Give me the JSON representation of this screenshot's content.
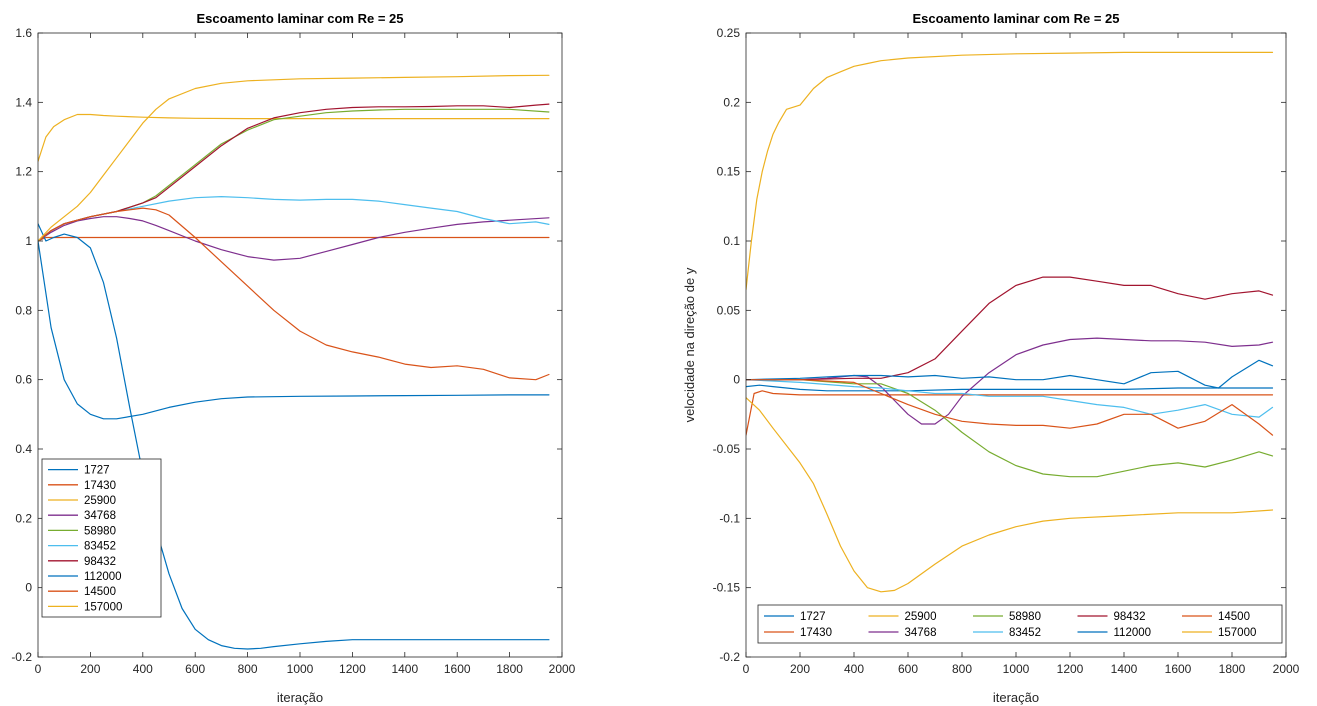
{
  "chart_data": [
    {
      "type": "line",
      "title": "Escoamento laminar com Re = 25",
      "xlabel": "iteração",
      "ylabel": "",
      "xlim": [
        0,
        2000
      ],
      "ylim": [
        -0.2,
        1.6
      ],
      "xticks": [
        0,
        200,
        400,
        600,
        800,
        1000,
        1200,
        1400,
        1600,
        1800,
        2000
      ],
      "yticks": [
        -0.2,
        0,
        0.2,
        0.4,
        0.6,
        0.8,
        1,
        1.2,
        1.4,
        1.6
      ],
      "grid": false,
      "legend_position": "bottom-left",
      "legend_columns": 1,
      "series": [
        {
          "name": "1727",
          "color": "#0072BD",
          "x": [
            0,
            50,
            100,
            150,
            200,
            250,
            300,
            400,
            500,
            600,
            700,
            800,
            1000,
            1200,
            1400,
            1600,
            1800,
            1950
          ],
          "y": [
            1.0,
            0.75,
            0.6,
            0.53,
            0.5,
            0.487,
            0.487,
            0.5,
            0.52,
            0.535,
            0.545,
            0.55,
            0.552,
            0.553,
            0.554,
            0.555,
            0.556,
            0.556
          ]
        },
        {
          "name": "17430",
          "color": "#D95319",
          "x": [
            0,
            30,
            1950
          ],
          "y": [
            1.0,
            1.01,
            1.01
          ]
        },
        {
          "name": "25900",
          "color": "#EDB120",
          "x": [
            0,
            30,
            60,
            100,
            150,
            200,
            250,
            300,
            400,
            500,
            600,
            800,
            1000,
            1200,
            1400,
            1600,
            1800,
            1950
          ],
          "y": [
            1.23,
            1.3,
            1.33,
            1.35,
            1.365,
            1.365,
            1.362,
            1.36,
            1.357,
            1.355,
            1.354,
            1.353,
            1.353,
            1.353,
            1.353,
            1.353,
            1.353,
            1.353
          ]
        },
        {
          "name": "34768",
          "color": "#7E2F8E",
          "x": [
            0,
            50,
            100,
            150,
            200,
            250,
            300,
            350,
            400,
            450,
            500,
            600,
            700,
            800,
            900,
            1000,
            1100,
            1200,
            1300,
            1400,
            1500,
            1600,
            1700,
            1800,
            1950
          ],
          "y": [
            1.0,
            1.025,
            1.045,
            1.058,
            1.065,
            1.07,
            1.07,
            1.065,
            1.058,
            1.045,
            1.03,
            1.0,
            0.975,
            0.955,
            0.945,
            0.95,
            0.97,
            0.99,
            1.01,
            1.025,
            1.037,
            1.048,
            1.055,
            1.06,
            1.067
          ]
        },
        {
          "name": "58980",
          "color": "#77AC30",
          "x": [
            0,
            50,
            100,
            200,
            300,
            400,
            450,
            500,
            600,
            700,
            800,
            900,
            1000,
            1100,
            1200,
            1300,
            1400,
            1500,
            1600,
            1700,
            1800,
            1950
          ],
          "y": [
            1.0,
            1.03,
            1.05,
            1.07,
            1.085,
            1.11,
            1.13,
            1.16,
            1.22,
            1.28,
            1.32,
            1.35,
            1.36,
            1.37,
            1.375,
            1.378,
            1.38,
            1.38,
            1.38,
            1.38,
            1.38,
            1.372
          ]
        },
        {
          "name": "83452",
          "color": "#4DBEEE",
          "x": [
            0,
            50,
            100,
            200,
            300,
            400,
            500,
            600,
            700,
            800,
            900,
            1000,
            1100,
            1200,
            1300,
            1400,
            1500,
            1600,
            1700,
            1800,
            1900,
            1950
          ],
          "y": [
            1.0,
            1.03,
            1.05,
            1.07,
            1.085,
            1.1,
            1.115,
            1.125,
            1.128,
            1.125,
            1.12,
            1.118,
            1.12,
            1.12,
            1.115,
            1.105,
            1.095,
            1.085,
            1.065,
            1.05,
            1.055,
            1.048
          ]
        },
        {
          "name": "98432",
          "color": "#A2142F",
          "x": [
            0,
            50,
            100,
            200,
            300,
            400,
            450,
            500,
            600,
            700,
            800,
            900,
            1000,
            1100,
            1200,
            1300,
            1400,
            1500,
            1600,
            1700,
            1800,
            1900,
            1950
          ],
          "y": [
            1.0,
            1.03,
            1.05,
            1.07,
            1.085,
            1.11,
            1.125,
            1.155,
            1.215,
            1.275,
            1.325,
            1.355,
            1.37,
            1.38,
            1.385,
            1.387,
            1.387,
            1.388,
            1.39,
            1.39,
            1.385,
            1.392,
            1.395
          ]
        },
        {
          "name": "112000",
          "color": "#0072BD",
          "x": [
            0,
            30,
            60,
            100,
            150,
            200,
            250,
            300,
            350,
            400,
            450,
            500,
            550,
            600,
            650,
            700,
            750,
            800,
            850,
            900,
            1000,
            1100,
            1200,
            1400,
            1600,
            1800,
            1950
          ],
          "y": [
            1.05,
            1.0,
            1.01,
            1.02,
            1.01,
            0.98,
            0.88,
            0.72,
            0.52,
            0.33,
            0.17,
            0.04,
            -0.06,
            -0.12,
            -0.15,
            -0.167,
            -0.175,
            -0.177,
            -0.175,
            -0.17,
            -0.162,
            -0.155,
            -0.15,
            -0.15,
            -0.15,
            -0.15,
            -0.15
          ]
        },
        {
          "name": "14500",
          "color": "#D95319",
          "x": [
            0,
            50,
            100,
            200,
            300,
            400,
            450,
            500,
            600,
            700,
            800,
            900,
            1000,
            1100,
            1200,
            1300,
            1400,
            1500,
            1600,
            1700,
            1800,
            1900,
            1950
          ],
          "y": [
            1.0,
            1.03,
            1.05,
            1.07,
            1.085,
            1.095,
            1.09,
            1.075,
            1.01,
            0.94,
            0.87,
            0.8,
            0.74,
            0.7,
            0.68,
            0.665,
            0.645,
            0.635,
            0.64,
            0.63,
            0.605,
            0.6,
            0.615
          ]
        },
        {
          "name": "157000",
          "color": "#EDB120",
          "x": [
            0,
            50,
            100,
            150,
            200,
            250,
            300,
            350,
            400,
            450,
            500,
            600,
            700,
            800,
            900,
            1000,
            1200,
            1400,
            1600,
            1800,
            1950
          ],
          "y": [
            1.0,
            1.04,
            1.07,
            1.1,
            1.14,
            1.19,
            1.24,
            1.29,
            1.34,
            1.38,
            1.41,
            1.44,
            1.455,
            1.462,
            1.465,
            1.468,
            1.47,
            1.472,
            1.474,
            1.477,
            1.478
          ]
        }
      ]
    },
    {
      "type": "line",
      "title": "Escoamento laminar com Re = 25",
      "xlabel": "iteração",
      "ylabel": "velocidade na direção de y",
      "xlim": [
        0,
        2000
      ],
      "ylim": [
        -0.2,
        0.25
      ],
      "xticks": [
        0,
        200,
        400,
        600,
        800,
        1000,
        1200,
        1400,
        1600,
        1800,
        2000
      ],
      "yticks": [
        -0.2,
        -0.15,
        -0.1,
        -0.05,
        0,
        0.05,
        0.1,
        0.15,
        0.2,
        0.25
      ],
      "grid": false,
      "legend_position": "bottom",
      "legend_columns": 5,
      "series": [
        {
          "name": "1727",
          "color": "#0072BD",
          "x": [
            0,
            50,
            100,
            200,
            300,
            400,
            600,
            800,
            1000,
            1200,
            1400,
            1600,
            1800,
            1950
          ],
          "y": [
            -0.005,
            -0.004,
            -0.005,
            -0.007,
            -0.008,
            -0.008,
            -0.008,
            -0.007,
            -0.007,
            -0.007,
            -0.007,
            -0.006,
            -0.006,
            -0.006
          ]
        },
        {
          "name": "17430",
          "color": "#D95319",
          "x": [
            0,
            30,
            60,
            100,
            200,
            400,
            600,
            800,
            1000,
            1200,
            1400,
            1600,
            1800,
            1950
          ],
          "y": [
            -0.04,
            -0.01,
            -0.008,
            -0.01,
            -0.011,
            -0.011,
            -0.011,
            -0.011,
            -0.011,
            -0.011,
            -0.011,
            -0.011,
            -0.011,
            -0.011
          ]
        },
        {
          "name": "25900",
          "color": "#EDB120",
          "x": [
            0,
            20,
            40,
            60,
            80,
            100,
            120,
            150,
            200,
            250,
            300,
            350,
            400,
            450,
            500,
            600,
            800,
            1000,
            1200,
            1400,
            1600,
            1800,
            1950
          ],
          "y": [
            0.065,
            0.1,
            0.13,
            0.15,
            0.165,
            0.177,
            0.185,
            0.195,
            0.198,
            0.21,
            0.218,
            0.222,
            0.226,
            0.228,
            0.23,
            0.232,
            0.234,
            0.235,
            0.2355,
            0.236,
            0.236,
            0.236,
            0.236
          ]
        },
        {
          "name": "34768",
          "color": "#7E2F8E",
          "x": [
            0,
            200,
            300,
            400,
            450,
            500,
            550,
            600,
            650,
            700,
            750,
            800,
            900,
            1000,
            1100,
            1200,
            1300,
            1400,
            1500,
            1600,
            1700,
            1800,
            1900,
            1950
          ],
          "y": [
            0,
            0,
            0.001,
            0.003,
            0.002,
            -0.005,
            -0.015,
            -0.025,
            -0.032,
            -0.032,
            -0.025,
            -0.012,
            0.005,
            0.018,
            0.025,
            0.029,
            0.03,
            0.029,
            0.028,
            0.028,
            0.027,
            0.024,
            0.025,
            0.027
          ]
        },
        {
          "name": "58980",
          "color": "#77AC30",
          "x": [
            0,
            200,
            400,
            500,
            600,
            700,
            800,
            900,
            1000,
            1100,
            1200,
            1300,
            1400,
            1500,
            1600,
            1700,
            1800,
            1900,
            1950
          ],
          "y": [
            0,
            0,
            -0.003,
            -0.003,
            -0.01,
            -0.022,
            -0.038,
            -0.052,
            -0.062,
            -0.068,
            -0.07,
            -0.07,
            -0.066,
            -0.062,
            -0.06,
            -0.063,
            -0.058,
            -0.052,
            -0.055
          ]
        },
        {
          "name": "83452",
          "color": "#4DBEEE",
          "x": [
            0,
            200,
            400,
            500,
            600,
            700,
            800,
            900,
            1000,
            1100,
            1200,
            1300,
            1400,
            1500,
            1600,
            1700,
            1800,
            1900,
            1950
          ],
          "y": [
            0,
            -0.002,
            -0.005,
            -0.006,
            -0.008,
            -0.01,
            -0.01,
            -0.012,
            -0.012,
            -0.012,
            -0.015,
            -0.018,
            -0.02,
            -0.025,
            -0.022,
            -0.018,
            -0.025,
            -0.027,
            -0.02
          ]
        },
        {
          "name": "98432",
          "color": "#A2142F",
          "x": [
            0,
            200,
            400,
            500,
            600,
            700,
            800,
            900,
            1000,
            1100,
            1200,
            1300,
            1400,
            1500,
            1600,
            1700,
            1800,
            1900,
            1950
          ],
          "y": [
            0,
            0,
            0.001,
            0.001,
            0.005,
            0.015,
            0.035,
            0.055,
            0.068,
            0.074,
            0.074,
            0.071,
            0.068,
            0.068,
            0.062,
            0.058,
            0.062,
            0.064,
            0.061
          ]
        },
        {
          "name": "112000",
          "color": "#0072BD",
          "x": [
            0,
            200,
            400,
            500,
            600,
            700,
            800,
            900,
            1000,
            1100,
            1200,
            1300,
            1400,
            1500,
            1600,
            1700,
            1750,
            1800,
            1900,
            1950
          ],
          "y": [
            0,
            0.001,
            0.003,
            0.003,
            0.002,
            0.003,
            0.001,
            0.002,
            0,
            0,
            0.003,
            0,
            -0.003,
            0.005,
            0.006,
            -0.004,
            -0.006,
            0.002,
            0.014,
            0.01
          ]
        },
        {
          "name": "14500",
          "color": "#D95319",
          "x": [
            0,
            200,
            400,
            500,
            600,
            700,
            800,
            900,
            1000,
            1100,
            1200,
            1300,
            1400,
            1500,
            1600,
            1700,
            1800,
            1900,
            1950
          ],
          "y": [
            0,
            0,
            -0.002,
            -0.01,
            -0.018,
            -0.025,
            -0.03,
            -0.032,
            -0.033,
            -0.033,
            -0.035,
            -0.032,
            -0.025,
            -0.025,
            -0.035,
            -0.03,
            -0.018,
            -0.032,
            -0.04
          ]
        },
        {
          "name": "157000",
          "color": "#EDB120",
          "x": [
            0,
            50,
            100,
            200,
            250,
            300,
            350,
            400,
            450,
            500,
            550,
            600,
            700,
            800,
            900,
            1000,
            1100,
            1200,
            1400,
            1600,
            1800,
            1950
          ],
          "y": [
            -0.013,
            -0.022,
            -0.035,
            -0.06,
            -0.075,
            -0.097,
            -0.12,
            -0.138,
            -0.15,
            -0.153,
            -0.152,
            -0.147,
            -0.133,
            -0.12,
            -0.112,
            -0.106,
            -0.102,
            -0.1,
            -0.098,
            -0.096,
            -0.096,
            -0.094
          ]
        }
      ]
    }
  ]
}
